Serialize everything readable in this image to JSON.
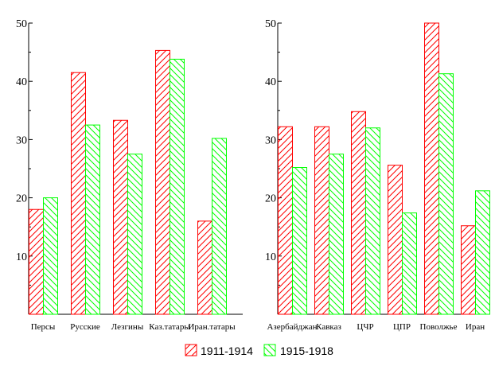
{
  "chart_data": [
    {
      "type": "bar",
      "categories": [
        "Персы",
        "Русские",
        "Лезгины",
        "Каз.татары",
        "Иран.татары"
      ],
      "series": [
        {
          "name": "1911-1914",
          "values": [
            18,
            41.5,
            33.3,
            45.3,
            16
          ]
        },
        {
          "name": "1915-1918",
          "values": [
            20,
            32.5,
            27.5,
            43.8,
            30.2
          ]
        }
      ],
      "ylim": [
        0,
        50
      ],
      "yticks": [
        10,
        20,
        30,
        40,
        50
      ]
    },
    {
      "type": "bar",
      "categories": [
        "Азербайджан",
        "Кавказ",
        "ЦЧР",
        "ЦПР",
        "Поволжье",
        "Иран"
      ],
      "series": [
        {
          "name": "1911-1914",
          "values": [
            32.2,
            32.2,
            34.8,
            25.6,
            50,
            15.2
          ]
        },
        {
          "name": "1915-1918",
          "values": [
            25.2,
            27.5,
            32,
            17.4,
            41.3,
            21.2
          ]
        }
      ],
      "ylim": [
        0,
        50
      ],
      "yticks": [
        10,
        20,
        30,
        40,
        50
      ]
    }
  ],
  "legend": {
    "items": [
      {
        "label": "1911-1914",
        "color": "#ff0000"
      },
      {
        "label": "1915-1918",
        "color": "#00ff00"
      }
    ]
  }
}
